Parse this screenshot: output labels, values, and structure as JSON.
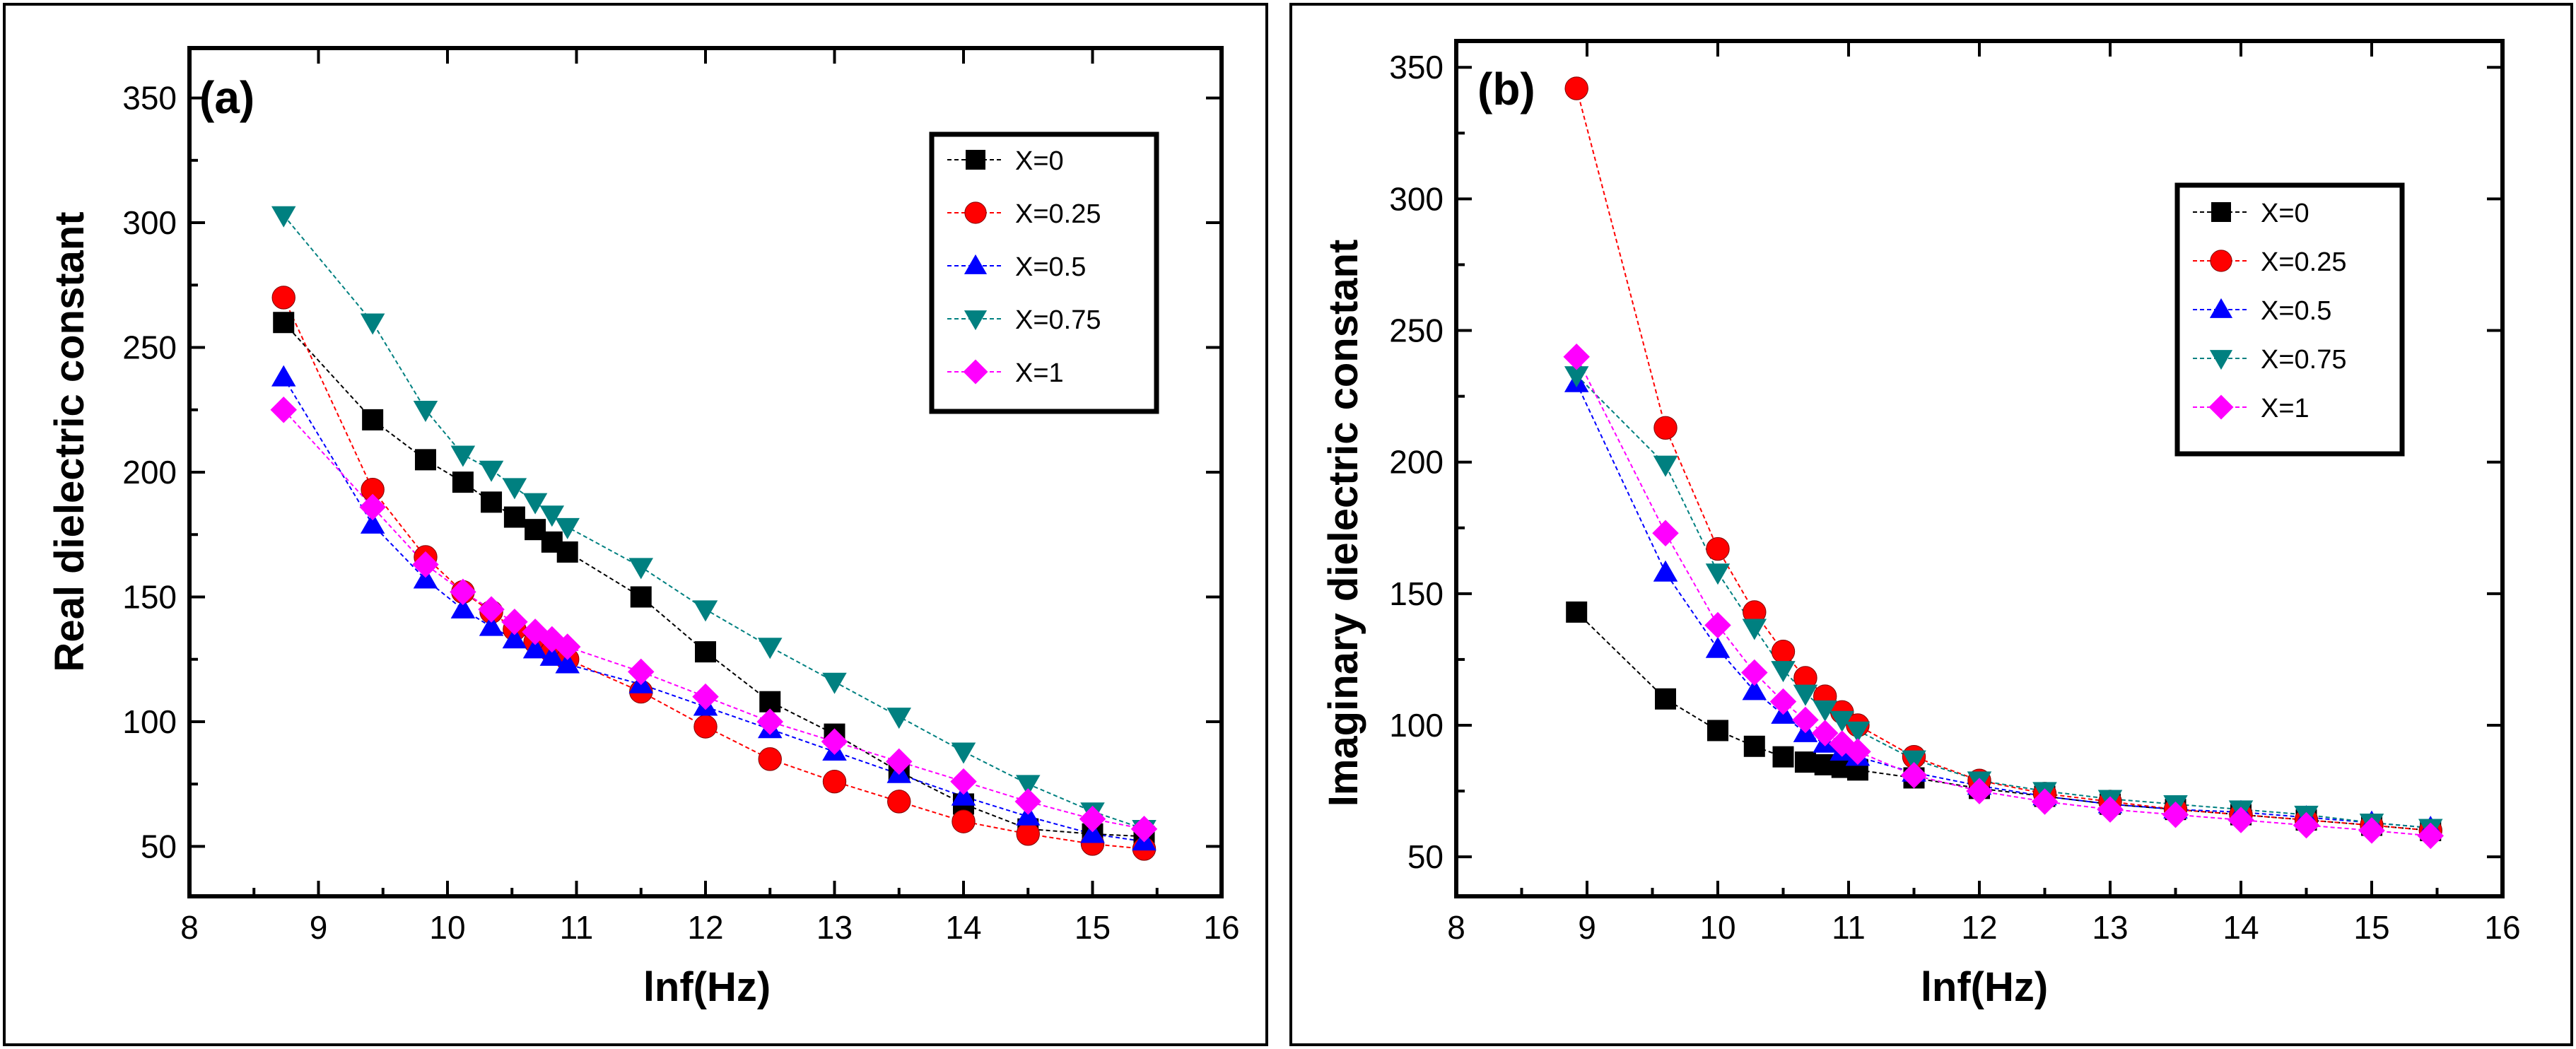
{
  "chart_data": [
    {
      "type": "line",
      "panel_label": "(a)",
      "xlabel": "lnf(Hz)",
      "ylabel": "Real dielectric constant",
      "xlim": [
        8,
        16
      ],
      "ylim": [
        30,
        370
      ],
      "xticks": [
        "8",
        "9",
        "10",
        "11",
        "12",
        "13",
        "14",
        "15",
        "16"
      ],
      "yticks": [
        "50",
        "100",
        "150",
        "200",
        "250",
        "300",
        "350"
      ],
      "legend_position": "top-right",
      "x": [
        8.73,
        9.42,
        9.83,
        10.12,
        10.34,
        10.52,
        10.68,
        10.81,
        10.93,
        11.5,
        12,
        12.5,
        13,
        13.5,
        14,
        14.5,
        15,
        15.4
      ],
      "series": [
        {
          "name": "X=0",
          "marker": "square",
          "color": "#000000",
          "values": [
            260,
            221,
            205,
            196,
            188,
            182,
            177,
            172,
            168,
            150,
            128,
            108,
            95,
            80,
            67,
            57,
            55,
            54
          ]
        },
        {
          "name": "X=0.25",
          "marker": "circle",
          "color": "#ff0000",
          "values": [
            270,
            193,
            166,
            152,
            144,
            137,
            132,
            128,
            125,
            112,
            98,
            85,
            76,
            68,
            60,
            55,
            51,
            49
          ]
        },
        {
          "name": "X=0.5",
          "marker": "triangle-up",
          "color": "#0000ff",
          "values": [
            238,
            179,
            157,
            145,
            138,
            133,
            129,
            126,
            123,
            115,
            106,
            97,
            88,
            79,
            70,
            62,
            55,
            52
          ]
        },
        {
          "name": "X=0.75",
          "marker": "triangle-down",
          "color": "#008080",
          "values": [
            303,
            260,
            225,
            207,
            201,
            194,
            188,
            183,
            178,
            162,
            145,
            130,
            116,
            102,
            88,
            75,
            64,
            57
          ]
        },
        {
          "name": "X=1",
          "marker": "diamond",
          "color": "#ff00ff",
          "values": [
            225,
            186,
            163,
            152,
            145,
            140,
            136,
            133,
            130,
            120,
            110,
            100,
            92,
            84,
            76,
            68,
            61,
            57
          ]
        }
      ]
    },
    {
      "type": "line",
      "panel_label": "(b)",
      "xlabel": "lnf(Hz)",
      "ylabel": "Imaginary dielectric constant",
      "xlim": [
        8,
        16
      ],
      "ylim": [
        35,
        360
      ],
      "xticks": [
        "8",
        "9",
        "10",
        "11",
        "12",
        "13",
        "14",
        "15",
        "16"
      ],
      "yticks": [
        "50",
        "100",
        "150",
        "200",
        "250",
        "300",
        "350"
      ],
      "legend_position": "top-right",
      "x": [
        8.92,
        9.6,
        10.0,
        10.28,
        10.5,
        10.67,
        10.82,
        10.95,
        11.07,
        11.5,
        12,
        12.5,
        13,
        13.5,
        14,
        14.5,
        15,
        15.45
      ],
      "series": [
        {
          "name": "X=0",
          "marker": "square",
          "color": "#000000",
          "values": [
            143,
            110,
            98,
            92,
            88,
            86,
            85,
            84,
            83,
            80,
            76,
            73,
            70,
            68,
            66,
            64,
            62,
            60
          ]
        },
        {
          "name": "X=0.25",
          "marker": "circle",
          "color": "#ff0000",
          "values": [
            342,
            213,
            167,
            143,
            128,
            118,
            111,
            105,
            100,
            88,
            79,
            74,
            71,
            68,
            66,
            64,
            62,
            60
          ]
        },
        {
          "name": "X=0.5",
          "marker": "triangle-up",
          "color": "#0000ff",
          "values": [
            230,
            158,
            129,
            113,
            104,
            97,
            93,
            90,
            88,
            82,
            77,
            73,
            70,
            68,
            67,
            65,
            63,
            61
          ]
        },
        {
          "name": "X=0.75",
          "marker": "triangle-down",
          "color": "#008080",
          "values": [
            233,
            199,
            158,
            137,
            121,
            112,
            106,
            102,
            98,
            87,
            79,
            75,
            72,
            70,
            68,
            66,
            63,
            61
          ]
        },
        {
          "name": "X=1",
          "marker": "diamond",
          "color": "#ff00ff",
          "values": [
            240,
            173,
            138,
            120,
            109,
            102,
            97,
            93,
            90,
            81,
            75,
            71,
            68,
            66,
            64,
            62,
            60,
            58
          ]
        }
      ]
    }
  ]
}
